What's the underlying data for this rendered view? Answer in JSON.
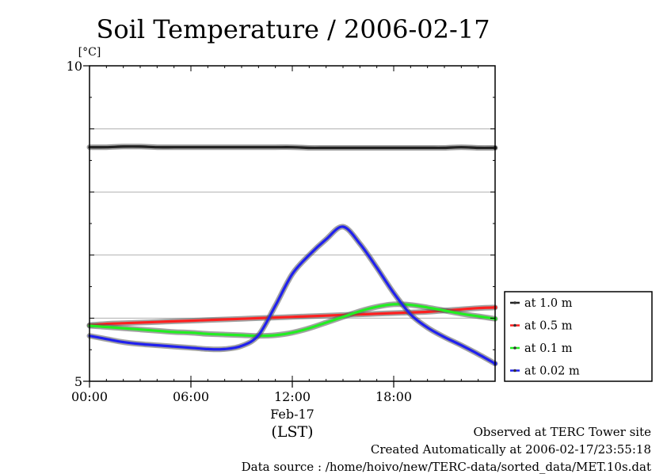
{
  "chart_data": {
    "type": "line",
    "title": "Soil Temperature / 2006-02-17",
    "ylabel": "[°C]",
    "xlabel": "(LST)",
    "x_date_label": "Feb-17",
    "ylim": [
      5,
      10
    ],
    "xlim": [
      "00:00",
      "24:00"
    ],
    "y_tick_labels": [
      "5",
      "10"
    ],
    "y_gridlines": [
      6,
      7,
      8,
      9
    ],
    "x_tick_labels": [
      "00:00",
      "06:00",
      "12:00",
      "18:00"
    ],
    "grid": true,
    "legend_position": "right",
    "x_hours": [
      0,
      1,
      2,
      3,
      4,
      5,
      6,
      7,
      8,
      9,
      10,
      11,
      12,
      13,
      14,
      15,
      16,
      17,
      18,
      19,
      20,
      21,
      22,
      23,
      24
    ],
    "series": [
      {
        "name": "at 1.0 m",
        "color": "#222222",
        "values": [
          8.71,
          8.71,
          8.72,
          8.72,
          8.71,
          8.71,
          8.71,
          8.71,
          8.71,
          8.71,
          8.71,
          8.71,
          8.71,
          8.7,
          8.7,
          8.7,
          8.7,
          8.7,
          8.7,
          8.7,
          8.7,
          8.7,
          8.71,
          8.7,
          8.7
        ]
      },
      {
        "name": "at 0.5 m",
        "color": "#ff2020",
        "values": [
          5.89,
          5.91,
          5.92,
          5.93,
          5.94,
          5.95,
          5.96,
          5.97,
          5.98,
          5.99,
          6.0,
          6.01,
          6.02,
          6.03,
          6.04,
          6.05,
          6.06,
          6.07,
          6.08,
          6.09,
          6.1,
          6.12,
          6.14,
          6.16,
          6.17
        ]
      },
      {
        "name": "at 0.1 m",
        "color": "#22ee22",
        "values": [
          5.88,
          5.86,
          5.84,
          5.82,
          5.8,
          5.78,
          5.77,
          5.75,
          5.74,
          5.73,
          5.72,
          5.73,
          5.77,
          5.84,
          5.93,
          6.02,
          6.11,
          6.18,
          6.22,
          6.21,
          6.17,
          6.12,
          6.07,
          6.03,
          5.99
        ]
      },
      {
        "name": "at 0.02 m",
        "color": "#2020ee",
        "values": [
          5.72,
          5.67,
          5.62,
          5.59,
          5.57,
          5.55,
          5.53,
          5.51,
          5.51,
          5.56,
          5.73,
          6.2,
          6.7,
          7.0,
          7.25,
          7.45,
          7.18,
          6.8,
          6.4,
          6.06,
          5.85,
          5.7,
          5.57,
          5.43,
          5.28
        ]
      }
    ]
  },
  "footer": {
    "observed": "Observed at TERC Tower site",
    "created": "Created Automatically at 2006-02-17/23:55:18",
    "source": "Data source : /home/hoivo/new/TERC-data/sorted_data/MET.10s.dat"
  }
}
